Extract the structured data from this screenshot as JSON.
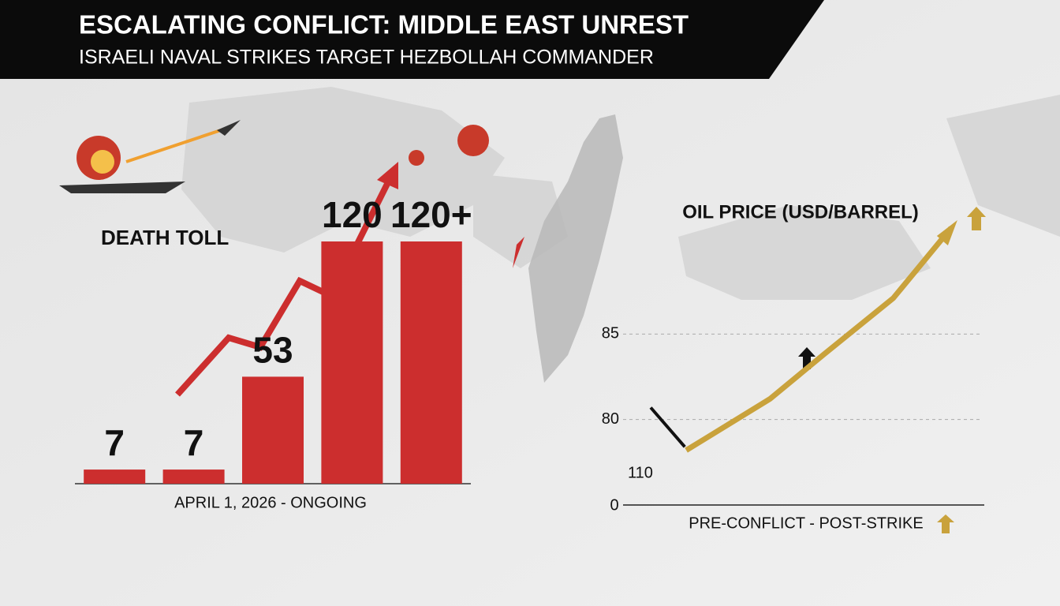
{
  "header": {
    "title": "ESCALATING CONFLICT: MIDDLE EAST UNREST",
    "subtitle": "ISRAELI NAVAL STRIKES TARGET HEZBOLLAH COMMANDER"
  },
  "chart_data": [
    {
      "type": "bar",
      "title": "DEATH TOLL",
      "x_label": "APRIL 1, 2026 - ONGOING",
      "categories": [
        null,
        null,
        null,
        null,
        null
      ],
      "values": [
        7,
        7,
        53,
        120,
        120
      ],
      "value_labels": [
        "7",
        "7",
        "53",
        "120",
        "120+"
      ],
      "color": "#cc2e2e"
    },
    {
      "type": "line",
      "title": "OIL PRICE (USD/BARREL)",
      "x_label": "PRE-CONFLICT - POST-STRIKE",
      "annotations": [
        "0",
        "110"
      ],
      "xlim": [
        0,
        100
      ],
      "ylim": [
        75,
        93
      ],
      "yticks": [
        80,
        85
      ],
      "grid": true,
      "series": [
        {
          "color": "#111111",
          "x": [
            7.7,
            17.2
          ],
          "values": [
            80.7,
            78.4
          ]
        },
        {
          "color": "#c9a23c",
          "x": [
            17.6,
            40.9,
            55.9,
            75.3,
            91.4
          ],
          "values": [
            78.2,
            81.2,
            83.8,
            87.1,
            91.2
          ]
        }
      ]
    }
  ]
}
